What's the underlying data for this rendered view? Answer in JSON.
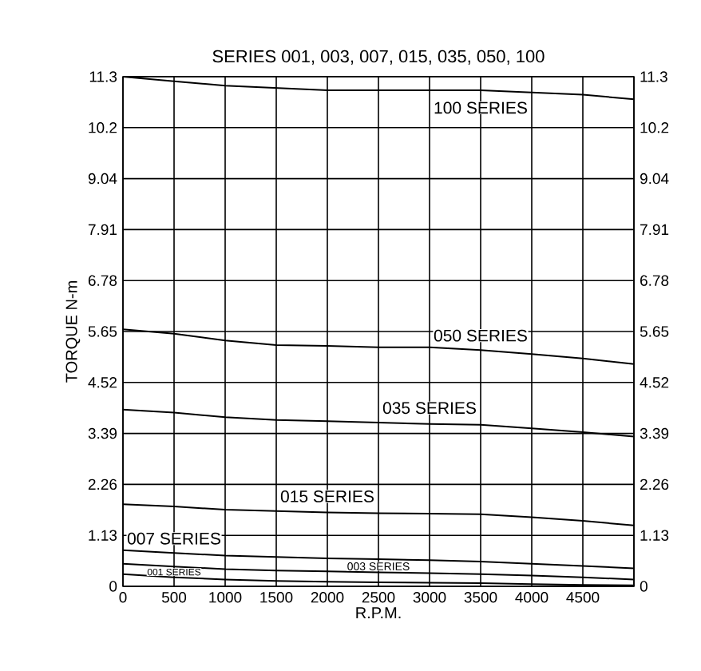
{
  "chart_data": {
    "type": "line",
    "title": "SERIES 001, 003, 007, 015, 035, 050, 100",
    "xlabel": "R.P.M.",
    "ylabel": "TORQUE N-m",
    "x": [
      0,
      500,
      1000,
      1500,
      2000,
      2500,
      3000,
      3500,
      4000,
      4500,
      5000
    ],
    "series": [
      {
        "name": "100 SERIES",
        "color": "#000000",
        "values": [
          11.3,
          11.2,
          11.1,
          11.05,
          11.0,
          11.0,
          11.0,
          11.0,
          10.95,
          10.9,
          10.8
        ]
      },
      {
        "name": "050 SERIES",
        "color": "#000000",
        "values": [
          5.7,
          5.6,
          5.45,
          5.35,
          5.33,
          5.3,
          5.3,
          5.24,
          5.15,
          5.05,
          4.93
        ]
      },
      {
        "name": "035 SERIES",
        "color": "#000000",
        "values": [
          3.92,
          3.85,
          3.75,
          3.69,
          3.66,
          3.63,
          3.6,
          3.58,
          3.5,
          3.42,
          3.32
        ]
      },
      {
        "name": "015 SERIES",
        "color": "#000000",
        "values": [
          1.82,
          1.77,
          1.7,
          1.67,
          1.64,
          1.62,
          1.61,
          1.6,
          1.53,
          1.45,
          1.35
        ]
      },
      {
        "name": "007 SERIES",
        "color": "#000000",
        "values": [
          0.8,
          0.74,
          0.68,
          0.65,
          0.62,
          0.6,
          0.58,
          0.55,
          0.5,
          0.45,
          0.4
        ]
      },
      {
        "name": "003 SERIES",
        "color": "#000000",
        "values": [
          0.5,
          0.44,
          0.38,
          0.35,
          0.33,
          0.31,
          0.29,
          0.27,
          0.24,
          0.2,
          0.15
        ]
      },
      {
        "name": "001 SERIES",
        "color": "#000000",
        "values": [
          0.27,
          0.2,
          0.15,
          0.12,
          0.1,
          0.09,
          0.08,
          0.07,
          0.05,
          0.03,
          0.02
        ]
      }
    ],
    "xlim": [
      0,
      5000
    ],
    "xticks": [
      0,
      500,
      1000,
      1500,
      2000,
      2500,
      3000,
      3500,
      4000,
      4500,
      {
        "value": 5000,
        "label": null
      }
    ],
    "ylim": [
      0,
      11.3
    ],
    "yticks": [
      0,
      1.13,
      2.26,
      3.39,
      4.52,
      5.65,
      6.78,
      7.91,
      9.04,
      {
        "value": 10.17,
        "label": "10.2"
      },
      11.3
    ],
    "y2lim": [
      0,
      11.3
    ],
    "y2ticks": [
      0,
      1.13,
      2.26,
      3.39,
      4.52,
      5.65,
      6.78,
      7.91,
      9.04,
      {
        "value": 10.17,
        "label": "10.2"
      },
      11.3
    ],
    "grid": true,
    "line_style": "solid"
  }
}
